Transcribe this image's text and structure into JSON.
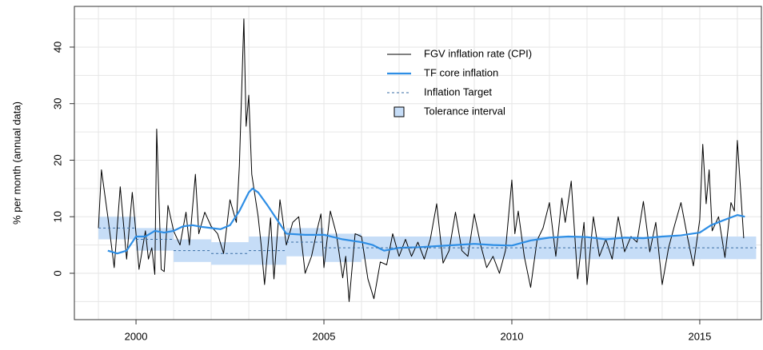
{
  "chart_data": {
    "type": "line",
    "ylabel": "% per month (annual data)",
    "xlim": [
      1998.36,
      2016.64
    ],
    "ylim": [
      -8.2,
      47.2
    ],
    "xticks": [
      2000,
      2005,
      2010,
      2015
    ],
    "yticks": [
      0,
      10,
      20,
      30,
      40
    ],
    "xgrid": [
      1999,
      2000,
      2001,
      2002,
      2003,
      2004,
      2005,
      2006,
      2007,
      2008,
      2009,
      2010,
      2011,
      2012,
      2013,
      2014,
      2015,
      2016
    ],
    "ygrid": [
      -5,
      0,
      5,
      10,
      15,
      20,
      25,
      30,
      35,
      40,
      45
    ],
    "grid": true,
    "legend": "top",
    "tolerance": {
      "name": "Tolerance interval",
      "color": "#c6ddf7",
      "start": [
        1999,
        2000,
        2001,
        2002,
        2003,
        2004,
        2005,
        2006
      ],
      "end": [
        2000,
        2001,
        2002,
        2003,
        2004,
        2005,
        2006,
        2016.5
      ],
      "lower": [
        6,
        4,
        2,
        1.5,
        1.5,
        3,
        2,
        2.5
      ],
      "upper": [
        10,
        8,
        6,
        5.5,
        6.5,
        8,
        7,
        6.5
      ]
    },
    "series": [
      {
        "name": "FGV inflation rate (CPI)",
        "color": "#000000",
        "style": "thin",
        "x": [
          1999.0,
          1999.08,
          1999.25,
          1999.42,
          1999.58,
          1999.75,
          1999.9,
          2000.0,
          2000.08,
          2000.25,
          2000.33,
          2000.42,
          2000.5,
          2000.55,
          2000.67,
          2000.75,
          2000.85,
          2001.0,
          2001.17,
          2001.33,
          2001.42,
          2001.58,
          2001.67,
          2001.83,
          2002.0,
          2002.17,
          2002.33,
          2002.5,
          2002.67,
          2002.75,
          2002.87,
          2002.93,
          2003.0,
          2003.08,
          2003.25,
          2003.33,
          2003.42,
          2003.58,
          2003.67,
          2003.83,
          2004.0,
          2004.17,
          2004.33,
          2004.5,
          2004.67,
          2004.83,
          2004.92,
          2005.0,
          2005.17,
          2005.33,
          2005.5,
          2005.58,
          2005.67,
          2005.83,
          2006.0,
          2006.17,
          2006.33,
          2006.5,
          2006.67,
          2006.83,
          2007.0,
          2007.17,
          2007.33,
          2007.5,
          2007.67,
          2007.83,
          2008.0,
          2008.17,
          2008.33,
          2008.5,
          2008.67,
          2008.83,
          2009.0,
          2009.17,
          2009.33,
          2009.5,
          2009.67,
          2009.83,
          2010.0,
          2010.08,
          2010.17,
          2010.33,
          2010.5,
          2010.67,
          2010.83,
          2011.0,
          2011.17,
          2011.33,
          2011.42,
          2011.58,
          2011.75,
          2011.92,
          2012.0,
          2012.17,
          2012.33,
          2012.5,
          2012.67,
          2012.83,
          2013.0,
          2013.17,
          2013.33,
          2013.5,
          2013.67,
          2013.83,
          2014.0,
          2014.17,
          2014.33,
          2014.5,
          2014.67,
          2014.83,
          2015.0,
          2015.08,
          2015.17,
          2015.25,
          2015.33,
          2015.5,
          2015.67,
          2015.83,
          2015.92,
          2016.0,
          2016.17
        ],
        "values": [
          8,
          18.3,
          10,
          1,
          15.3,
          2.5,
          14.3,
          7,
          0.7,
          7.5,
          2.5,
          4.5,
          -0.2,
          25.5,
          0.7,
          0.3,
          12,
          7.5,
          5,
          10.8,
          5,
          17.5,
          7,
          10.8,
          8.3,
          7,
          3.5,
          13,
          9,
          19,
          45,
          26,
          31.5,
          17.5,
          10,
          5,
          -2,
          9.8,
          -1,
          13,
          5,
          9,
          10,
          0,
          3,
          8,
          10.5,
          1,
          11,
          7,
          -0.8,
          3,
          -5,
          7,
          6.5,
          -1,
          -4.5,
          2,
          1.5,
          7,
          3,
          6,
          3,
          5.5,
          2.5,
          6,
          12.3,
          1.8,
          4,
          10.8,
          4,
          3,
          10.5,
          5,
          1,
          3,
          0,
          4,
          16.5,
          7,
          11,
          3,
          -2.5,
          5.8,
          8,
          12.5,
          3,
          13.3,
          9,
          16.3,
          -1,
          9,
          -2,
          10,
          3,
          6,
          2.5,
          10,
          3.8,
          6.5,
          5.5,
          12.7,
          3.8,
          9,
          -2,
          4.5,
          8.5,
          12.5,
          6.5,
          1.3,
          9.5,
          22.8,
          12.3,
          18.3,
          7.5,
          10,
          2.8,
          12.5,
          11,
          23.5,
          6.2
        ]
      },
      {
        "name": "TF core inflation",
        "color": "#2e8ee5",
        "style": "thick",
        "x": [
          1999.25,
          1999.5,
          1999.75,
          2000.0,
          2000.25,
          2000.5,
          2000.75,
          2001.0,
          2001.25,
          2001.5,
          2001.75,
          2002.0,
          2002.25,
          2002.5,
          2002.75,
          2003.0,
          2003.1,
          2003.25,
          2003.5,
          2003.75,
          2004.0,
          2004.5,
          2005.0,
          2005.5,
          2006.0,
          2006.3,
          2006.6,
          2007.0,
          2007.5,
          2008.0,
          2008.5,
          2009.0,
          2009.5,
          2010.0,
          2010.5,
          2011.0,
          2011.5,
          2012.0,
          2012.5,
          2013.0,
          2013.5,
          2014.0,
          2014.5,
          2014.8,
          2015.0,
          2015.3,
          2015.6,
          2016.0,
          2016.2
        ],
        "values": [
          4,
          3.5,
          4,
          6.5,
          6.5,
          7.5,
          7.2,
          7.5,
          8.3,
          8.5,
          8.2,
          8,
          7.8,
          8.5,
          11,
          14.3,
          15,
          14.3,
          12,
          9.5,
          7,
          6.8,
          6.8,
          6,
          5.5,
          5,
          4,
          4.5,
          4.6,
          4.8,
          5,
          5.2,
          5,
          4.9,
          5.8,
          6.3,
          6.5,
          6.4,
          6,
          6.3,
          6.2,
          6.5,
          6.7,
          7,
          7.2,
          8.5,
          9.3,
          10.3,
          10
        ]
      },
      {
        "name": "Inflation Target",
        "color": "#3a6ea5",
        "style": "dashed",
        "start": [
          1999,
          2000,
          2001,
          2002,
          2003,
          2004,
          2005,
          2006
        ],
        "end": [
          2000,
          2001,
          2002,
          2003,
          2004,
          2005,
          2006,
          2016.5
        ],
        "values": [
          8,
          6,
          4,
          3.5,
          4,
          5.5,
          4.5,
          4.5
        ]
      }
    ]
  }
}
